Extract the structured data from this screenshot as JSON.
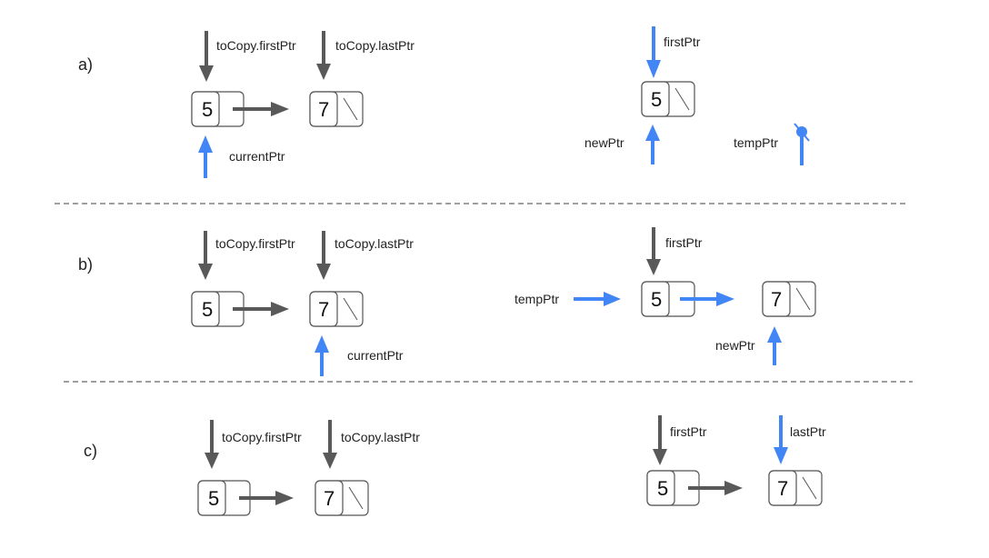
{
  "colors": {
    "gray_arrow": "#595959",
    "blue_arrow": "#4285f4",
    "node_border": "#555555"
  },
  "sections": {
    "a": {
      "label": "a)",
      "left": {
        "first_label": "toCopy.firstPtr",
        "last_label": "toCopy.lastPtr",
        "node1": "5",
        "node2": "7",
        "current_label": "currentPtr"
      },
      "right": {
        "first_label": "firstPtr",
        "node1": "5",
        "new_label": "newPtr",
        "temp_label": "tempPtr"
      }
    },
    "b": {
      "label": "b)",
      "left": {
        "first_label": "toCopy.firstPtr",
        "last_label": "toCopy.lastPtr",
        "node1": "5",
        "node2": "7",
        "current_label": "currentPtr"
      },
      "right": {
        "first_label": "firstPtr",
        "temp_label": "tempPtr",
        "node1": "5",
        "node2": "7",
        "new_label": "newPtr"
      }
    },
    "c": {
      "label": "c)",
      "left": {
        "first_label": "toCopy.firstPtr",
        "last_label": "toCopy.lastPtr",
        "node1": "5",
        "node2": "7"
      },
      "right": {
        "first_label": "firstPtr",
        "last_label": "lastPtr",
        "node1": "5",
        "node2": "7"
      }
    }
  }
}
